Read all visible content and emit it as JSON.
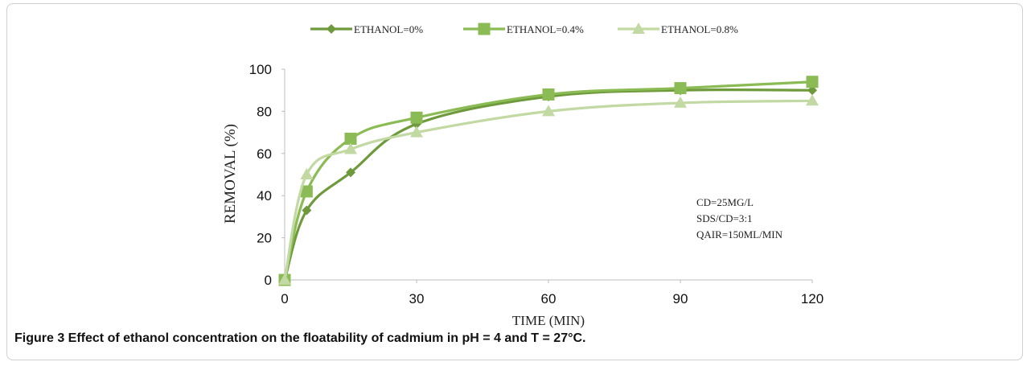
{
  "chart_data": {
    "type": "line",
    "title": "",
    "xlabel": "TIME (MIN)",
    "ylabel": "REMOVAL (%)",
    "x": [
      0,
      5,
      15,
      30,
      60,
      90,
      120
    ],
    "xticks": [
      0,
      30,
      60,
      90,
      120
    ],
    "yticks": [
      0,
      20,
      40,
      60,
      80,
      100
    ],
    "xlim": [
      0,
      120
    ],
    "ylim": [
      0,
      100
    ],
    "grid": false,
    "legend_position": "top",
    "series": [
      {
        "name": "ETHANOL=0%",
        "marker": "diamond",
        "color": "#6e9a3c",
        "values": [
          0,
          33,
          51,
          74,
          87,
          90,
          90
        ]
      },
      {
        "name": "ETHANOL=0.4%",
        "marker": "square",
        "color": "#8bbb54",
        "values": [
          0,
          42,
          67,
          77,
          88,
          91,
          94
        ]
      },
      {
        "name": "ETHANOL=0.8%",
        "marker": "triangle",
        "color": "#c2d9a4",
        "values": [
          0,
          50,
          62,
          70,
          80,
          84,
          85
        ]
      }
    ],
    "annotations": [
      "CD=25MG/L",
      "SDS/CD=3:1",
      "QAIR=150ML/MIN"
    ]
  },
  "caption": {
    "prefix": "Figure 3",
    "text": " Effect of ethanol concentration on the floatability of cadmium in pH = 4 and T = 27°C."
  }
}
